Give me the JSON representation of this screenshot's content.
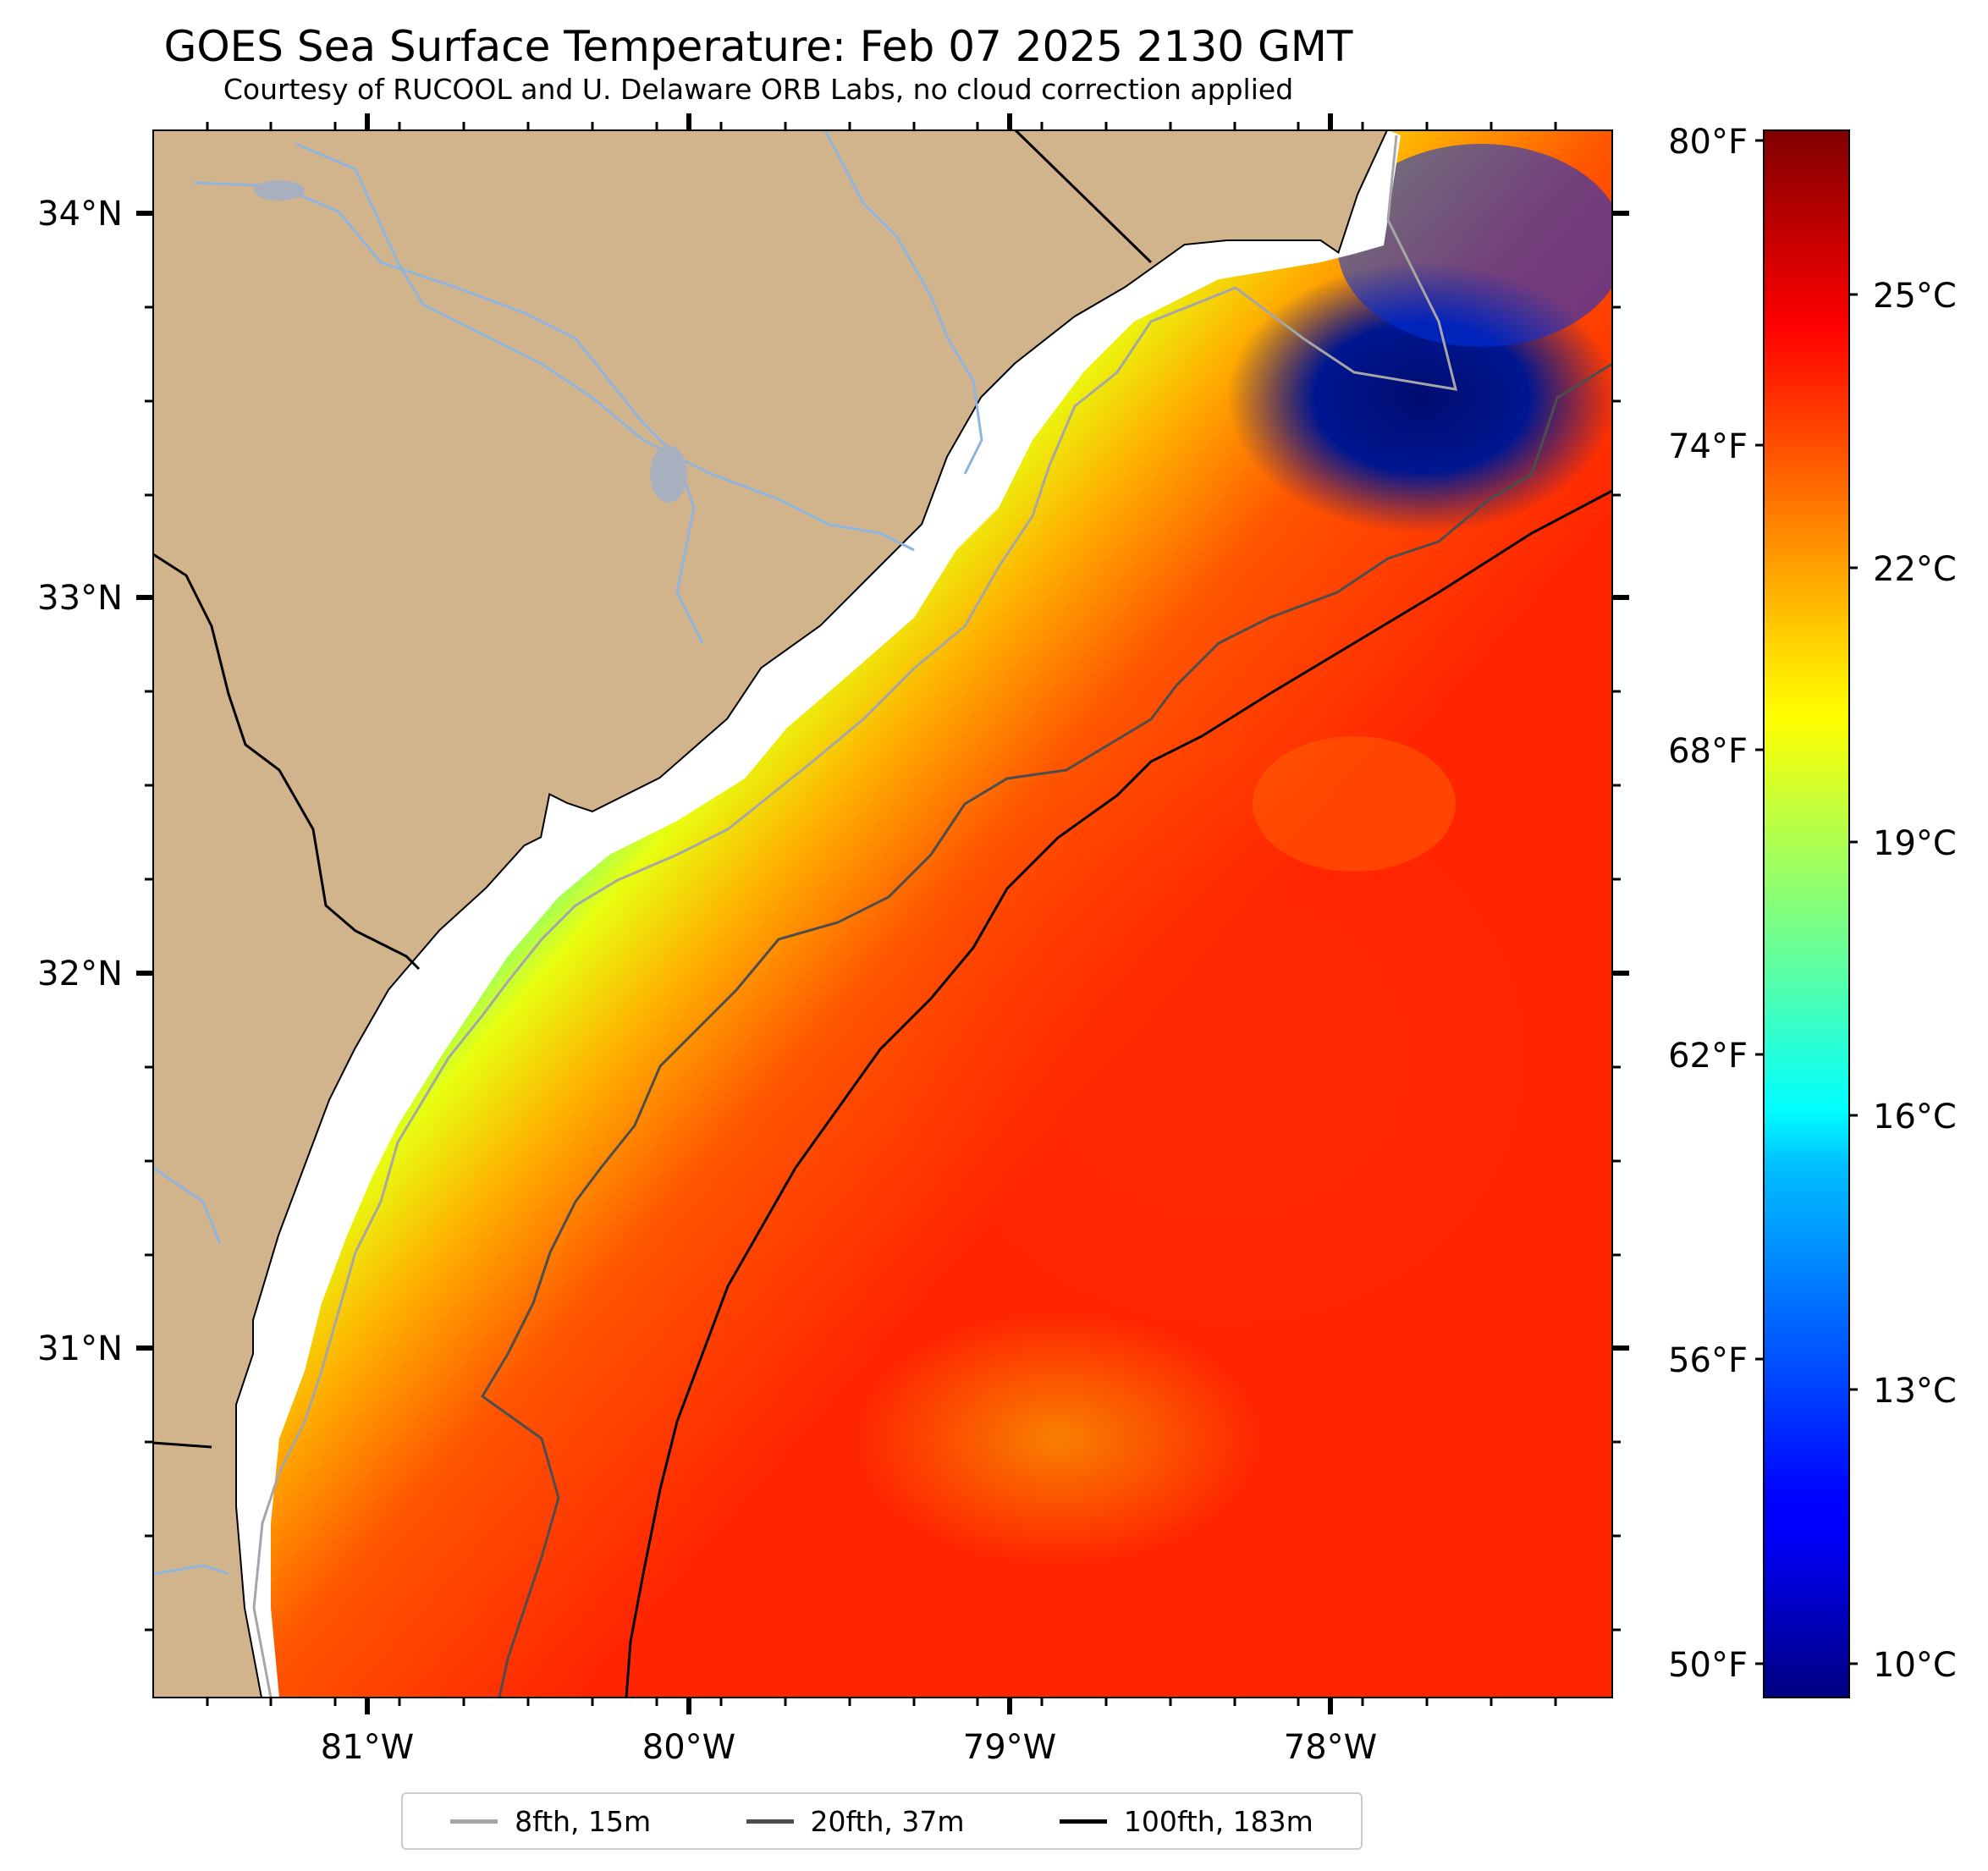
{
  "title": "GOES Sea Surface Temperature: Feb 07 2025 2130 GMT",
  "subtitle": "Courtesy of RUCOOL and U. Delaware ORB Labs, no cloud correction applied",
  "map": {
    "lon_ticks": [
      "81°W",
      "80°W",
      "79°W",
      "78°W"
    ],
    "lat_ticks": [
      "34°N",
      "33°N",
      "32°N",
      "31°N"
    ],
    "colors": {
      "land": "#d2b48c",
      "river": "#8fb4e0",
      "coast": "#000000"
    }
  },
  "colorbar": {
    "fahrenheit_ticks": [
      "80°F",
      "74°F",
      "68°F",
      "62°F",
      "56°F",
      "50°F"
    ],
    "celsius_ticks": [
      "25°C",
      "22°C",
      "19°C",
      "16°C",
      "13°C",
      "10°C"
    ],
    "range_c": [
      9.5,
      27
    ]
  },
  "legend": [
    {
      "label": "8fth, 15m",
      "color": "#a6a6a6"
    },
    {
      "label": "20fth, 37m",
      "color": "#4d4d4d"
    },
    {
      "label": "100fth, 183m",
      "color": "#000000"
    }
  ]
}
